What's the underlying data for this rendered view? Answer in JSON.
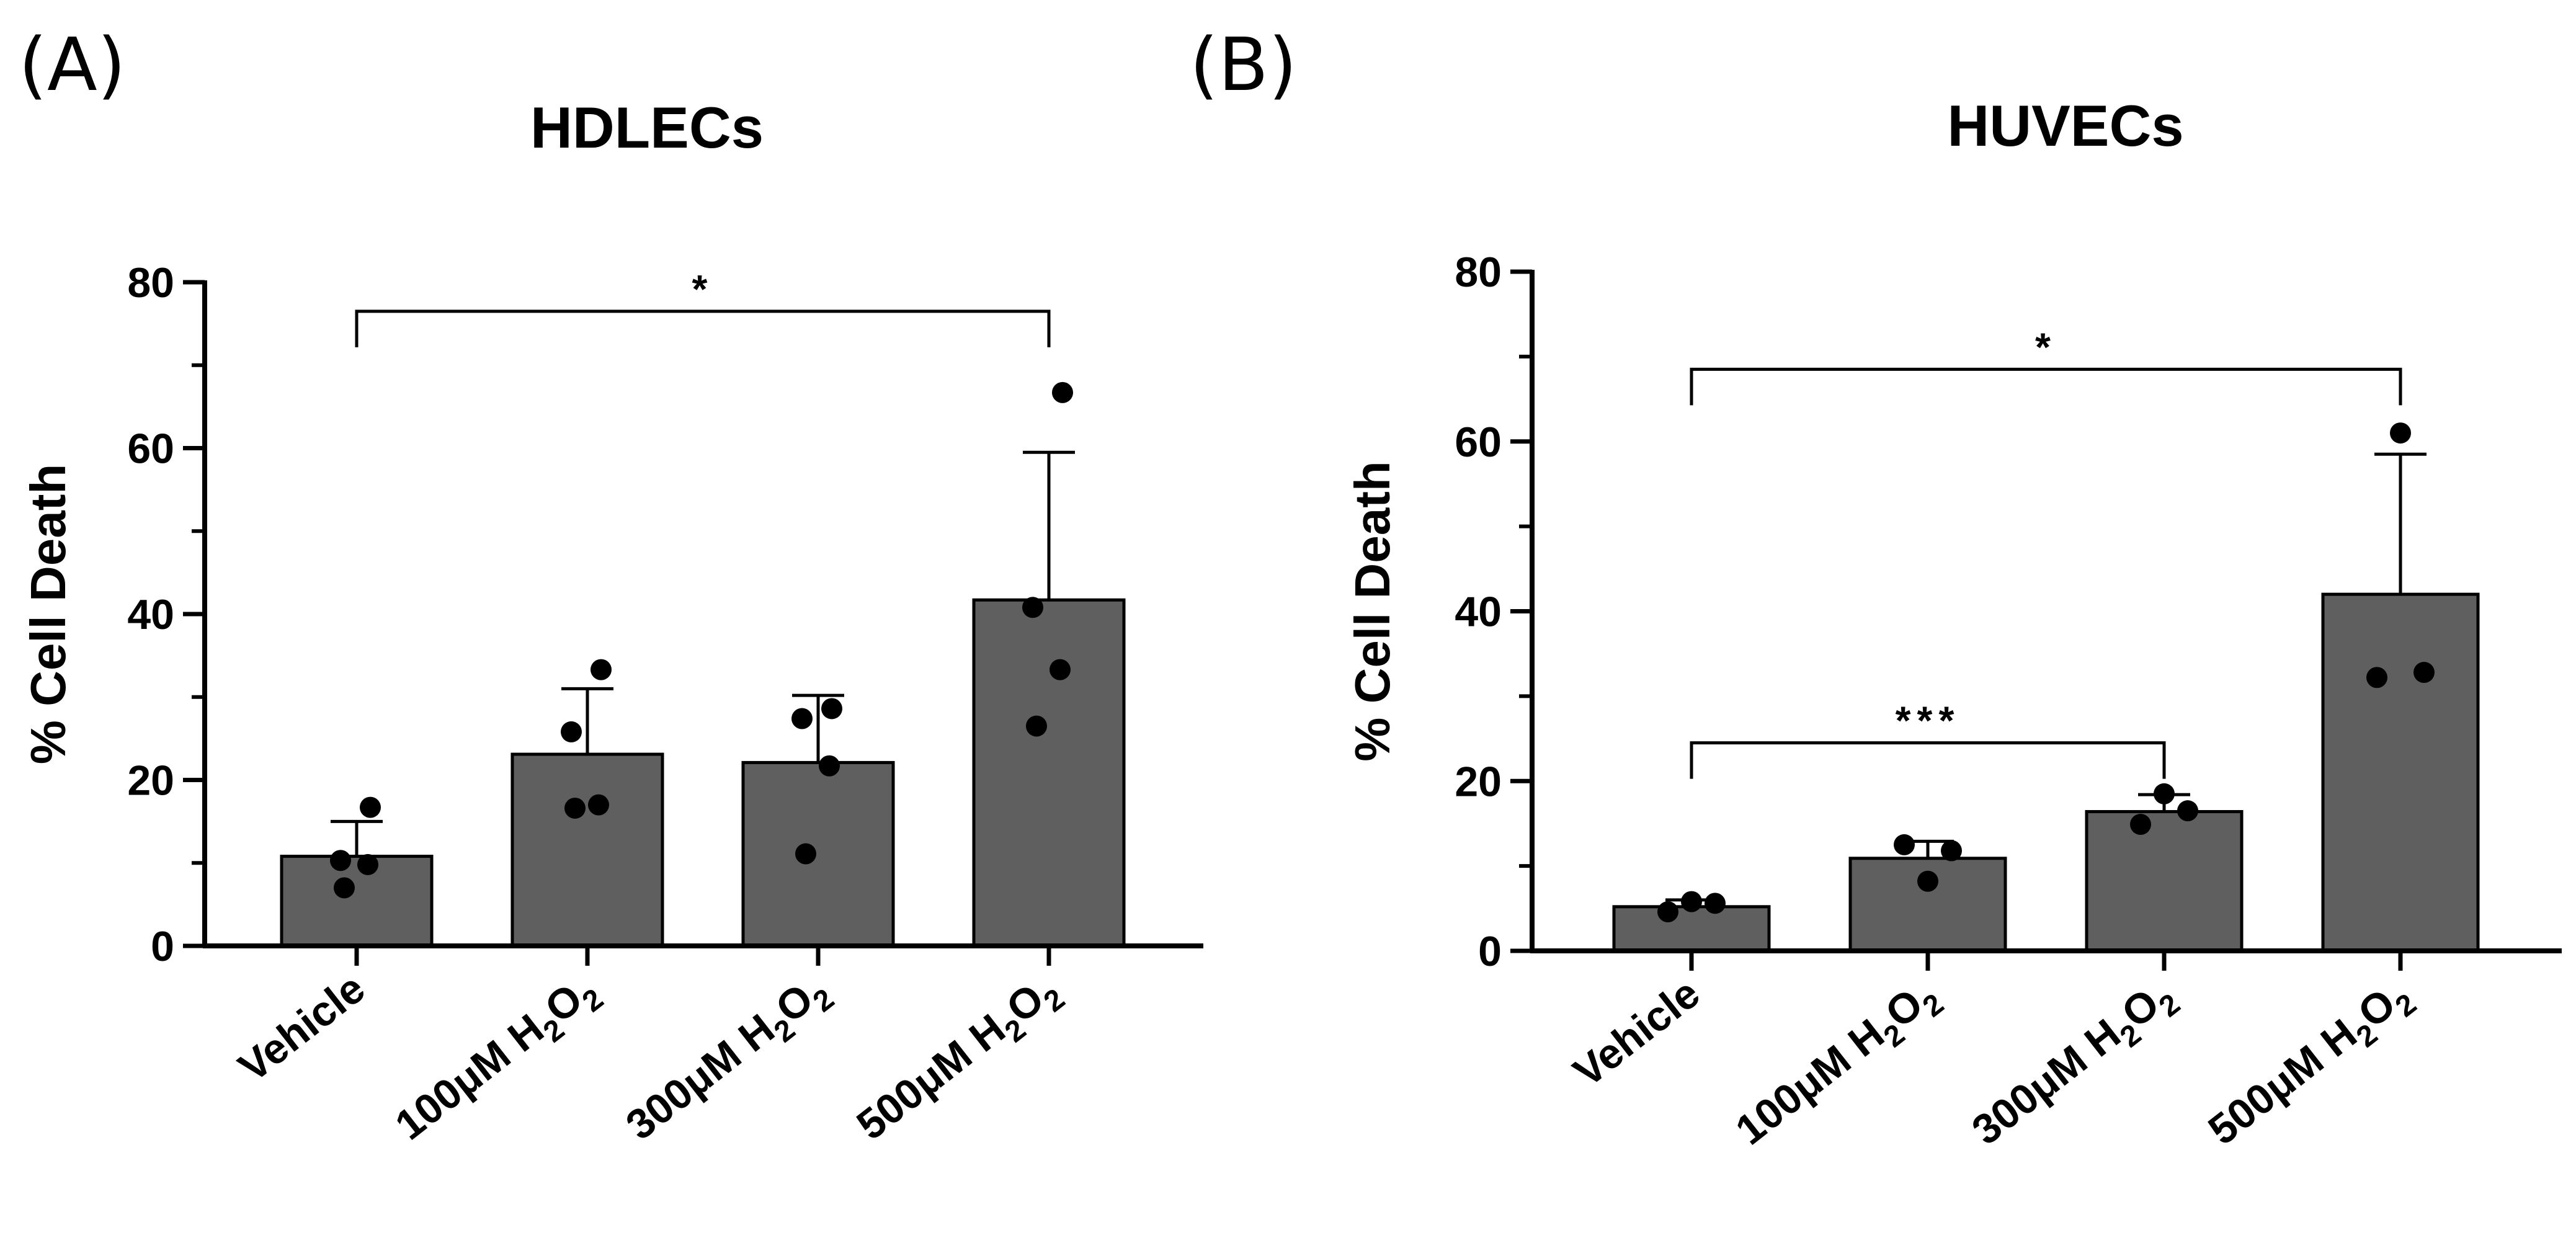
{
  "chart_data": [
    {
      "type": "bar",
      "panel": "(A)",
      "title": "HDLECs",
      "xlabel": "",
      "ylabel": "% Cell Death",
      "ylim": [
        0,
        80
      ],
      "yticks": [
        "0",
        "20",
        "40",
        "60",
        "80"
      ],
      "categories": [
        {
          "prefix": "Vehicle",
          "sub1": "",
          "mid": "",
          "sub2": ""
        },
        {
          "prefix": "100μM H",
          "sub1": "2",
          "mid": "O",
          "sub2": "2"
        },
        {
          "prefix": "300μM H",
          "sub1": "2",
          "mid": "O",
          "sub2": "2"
        },
        {
          "prefix": "500μM H",
          "sub1": "2",
          "mid": "O",
          "sub2": "2"
        }
      ],
      "values": [
        10.8,
        23.1,
        22.1,
        41.7
      ],
      "errors": [
        4.2,
        7.9,
        8.1,
        17.8
      ],
      "points": [
        [
          16.7,
          10.3,
          9.8,
          7.0
        ],
        [
          33.3,
          25.8,
          17.0,
          16.6
        ],
        [
          28.6,
          27.4,
          21.7,
          11.1
        ],
        [
          66.7,
          40.8,
          33.3,
          26.5
        ]
      ],
      "significance": [
        {
          "from": 0,
          "to": 3,
          "label": "*",
          "y": 76.5
        }
      ]
    },
    {
      "type": "bar",
      "panel": "(B)",
      "title": "HUVECs",
      "xlabel": "",
      "ylabel": "% Cell Death",
      "ylim": [
        0,
        80
      ],
      "yticks": [
        "0",
        "20",
        "40",
        "60",
        "80"
      ],
      "categories": [
        {
          "prefix": "Vehicle",
          "sub1": "",
          "mid": "",
          "sub2": ""
        },
        {
          "prefix": "100μM H",
          "sub1": "2",
          "mid": "O",
          "sub2": "2"
        },
        {
          "prefix": "300μM H",
          "sub1": "2",
          "mid": "O",
          "sub2": "2"
        },
        {
          "prefix": "500μM H",
          "sub1": "2",
          "mid": "O",
          "sub2": "2"
        }
      ],
      "values": [
        5.2,
        10.9,
        16.4,
        42.0
      ],
      "errors": [
        0.8,
        2.0,
        2.0,
        16.5
      ],
      "points": [
        [
          4.6,
          5.8,
          5.6
        ],
        [
          12.5,
          8.2,
          11.8
        ],
        [
          14.9,
          18.5,
          16.5
        ],
        [
          32.2,
          61.0,
          32.8
        ]
      ],
      "significance": [
        {
          "from": 0,
          "to": 2,
          "label": "***",
          "y": 24.5
        },
        {
          "from": 0,
          "to": 3,
          "label": "*",
          "y": 68.5
        }
      ]
    }
  ]
}
